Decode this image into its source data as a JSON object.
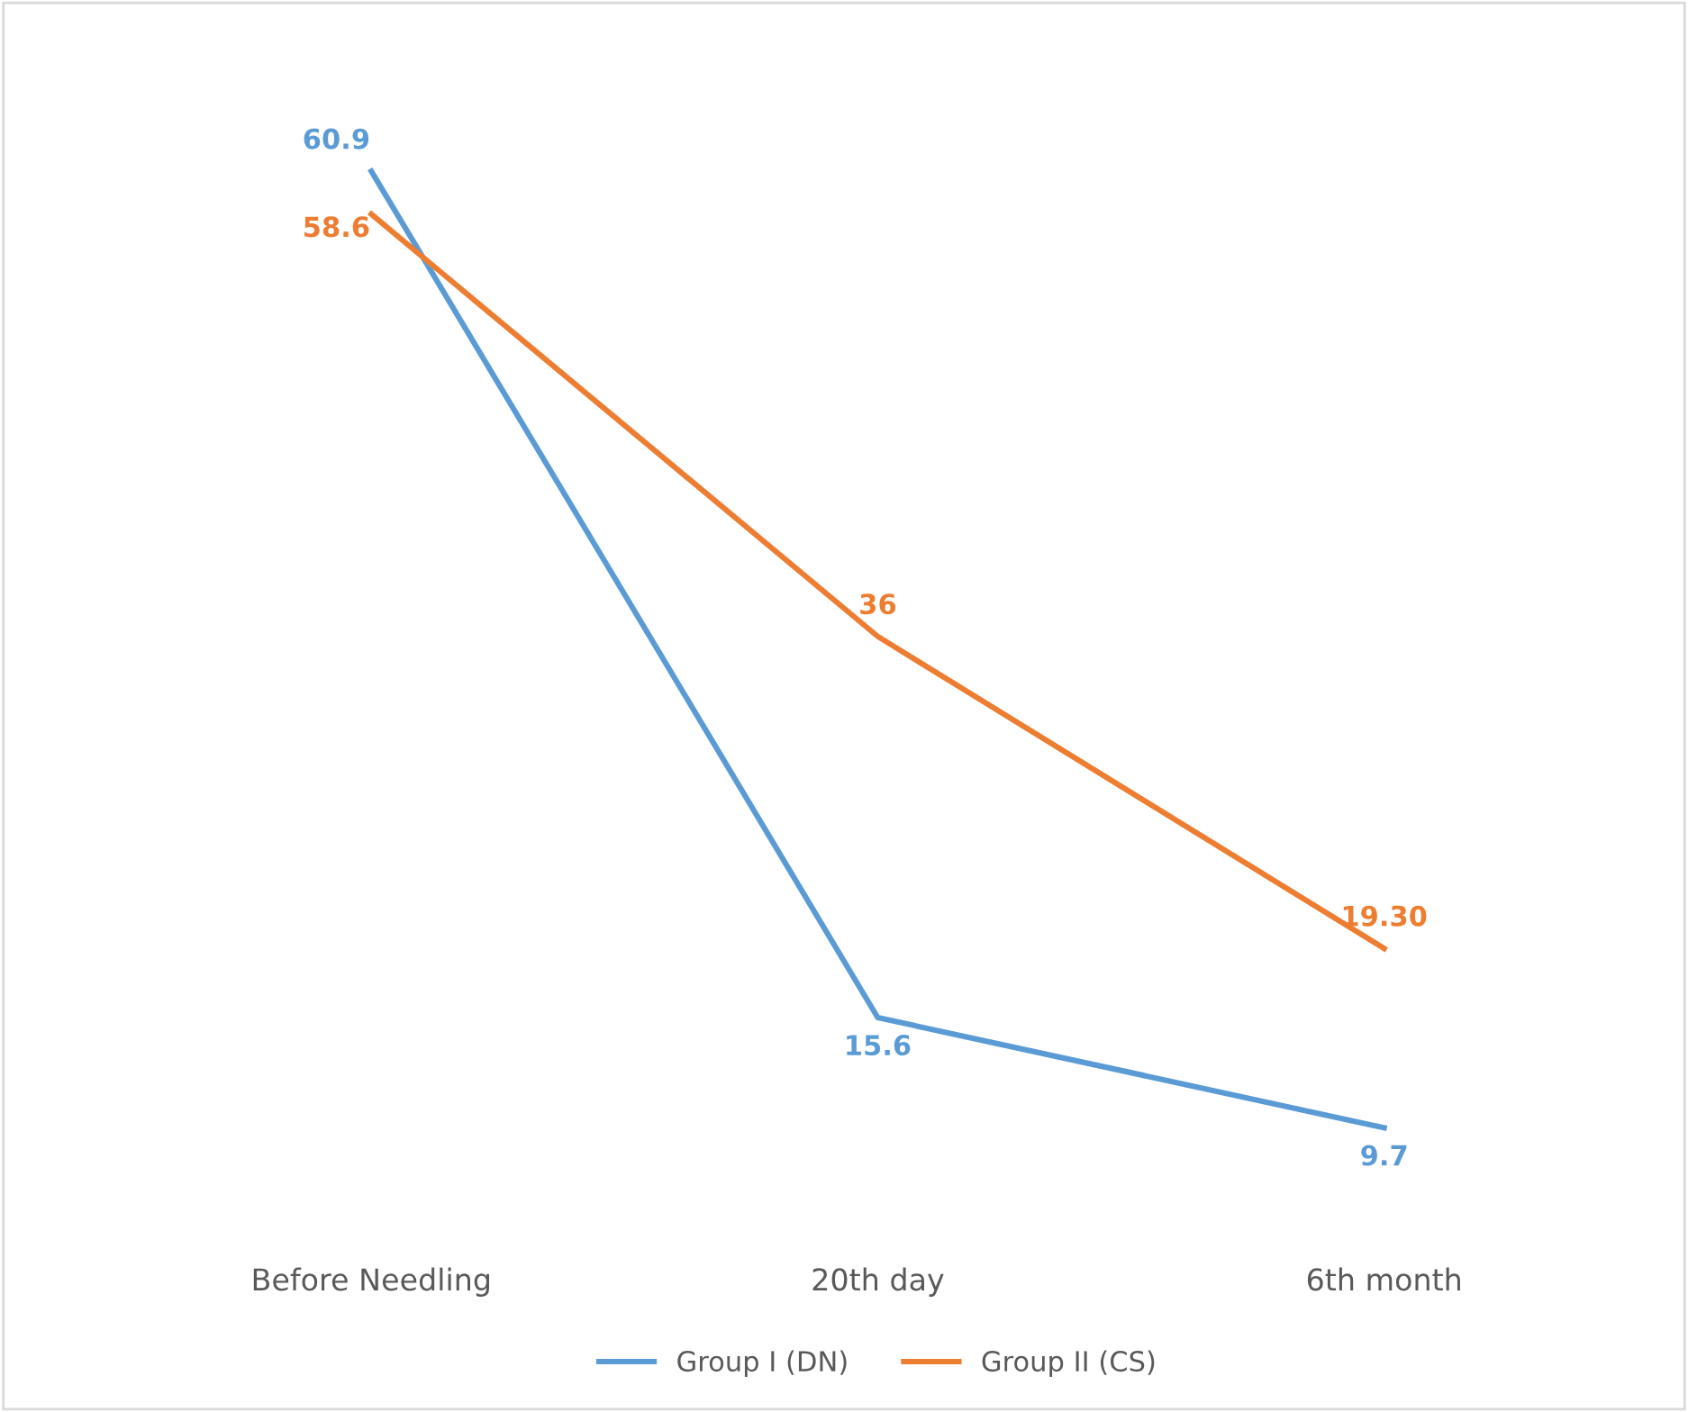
{
  "chart_data": {
    "type": "line",
    "categories": [
      "Before Needling",
      "20th day",
      "6th month"
    ],
    "series": [
      {
        "name": "Group I (DN)",
        "color": "#5b9bd5",
        "values": [
          60.9,
          15.6,
          9.7
        ],
        "value_labels": [
          "60.9",
          "15.6",
          "9.7"
        ]
      },
      {
        "name": "Group II (CS)",
        "color": "#ed7d31",
        "values": [
          58.6,
          36,
          19.3
        ],
        "value_labels": [
          "58.6",
          "36",
          "19.30"
        ]
      }
    ],
    "legend": "bottom",
    "grid": false,
    "line_style": "solid"
  }
}
